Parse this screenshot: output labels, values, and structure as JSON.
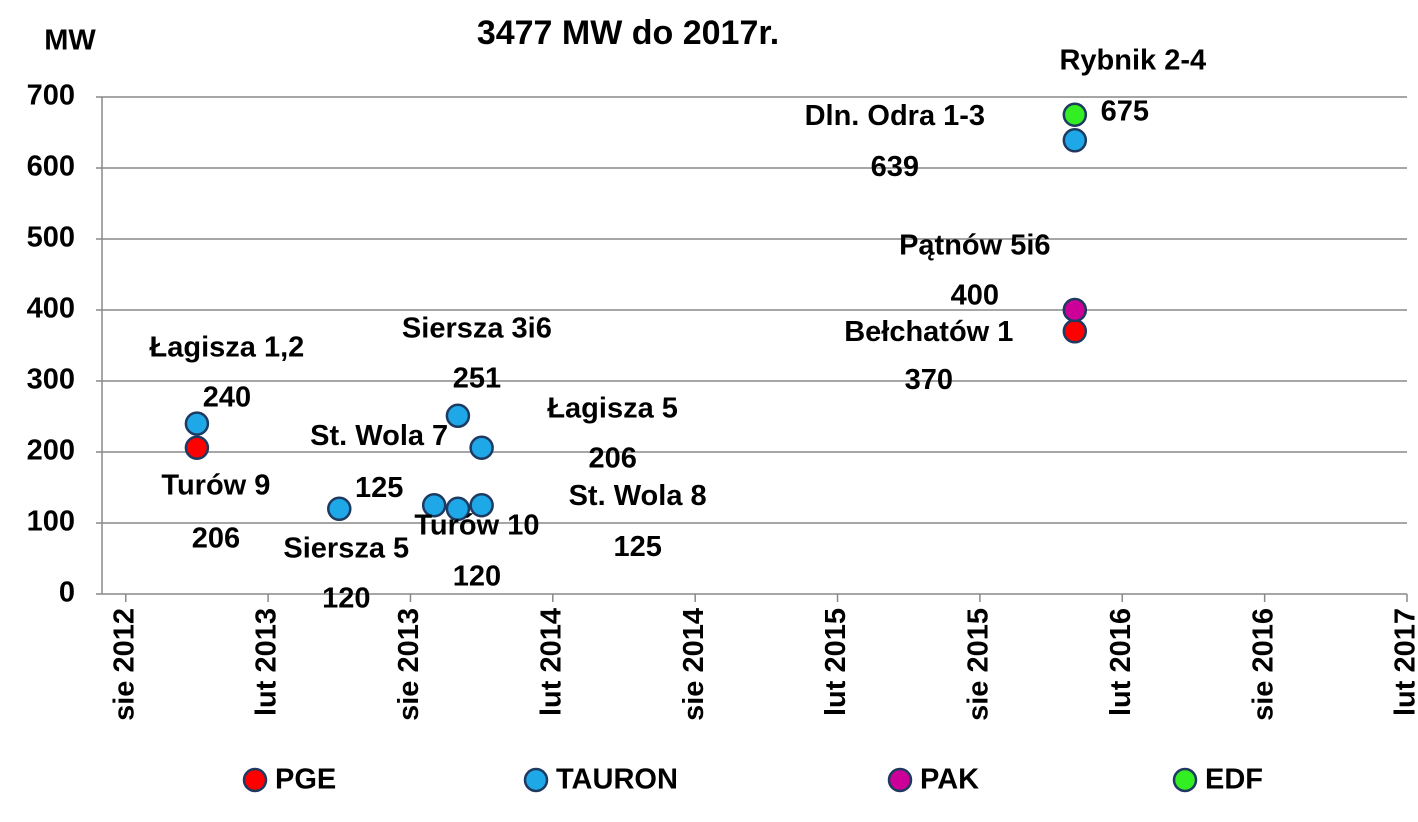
{
  "chart_data": {
    "type": "scatter",
    "title": "3477 MW do 2017r.",
    "y_label": "MW",
    "xlim": [
      "2012-07",
      "2017-02"
    ],
    "xticks": [
      {
        "value": "2012-08",
        "label": "sie 2012"
      },
      {
        "value": "2013-02",
        "label": "lut 2013"
      },
      {
        "value": "2013-08",
        "label": "sie 2013"
      },
      {
        "value": "2014-02",
        "label": "lut 2014"
      },
      {
        "value": "2014-08",
        "label": "sie 2014"
      },
      {
        "value": "2015-02",
        "label": "lut 2015"
      },
      {
        "value": "2015-08",
        "label": "sie 2015"
      },
      {
        "value": "2016-02",
        "label": "lut 2016"
      },
      {
        "value": "2016-08",
        "label": "sie 2016"
      },
      {
        "value": "2017-02",
        "label": "lut 2017"
      }
    ],
    "ylim": [
      0,
      700
    ],
    "yticks": [
      0,
      100,
      200,
      300,
      400,
      500,
      600,
      700
    ],
    "grid": true,
    "legend": "bottom",
    "series": [
      {
        "name": "PGE",
        "color": "#ff0000",
        "x": [
          "2012-11",
          "2015-12"
        ],
        "values": [
          206,
          370
        ],
        "labels": [
          "Turów 9",
          "Bełchatów 1"
        ]
      },
      {
        "name": "TAURON",
        "color": "#1fa8e8",
        "x": [
          "2012-11",
          "2013-05",
          "2013-09",
          "2013-10",
          "2013-11",
          "2013-10",
          "2013-11",
          "2015-12"
        ],
        "values": [
          240,
          120,
          125,
          120,
          125,
          251,
          206,
          639
        ],
        "labels": [
          "Łagisza 1,2",
          "Siersza 5",
          "St. Wola 7",
          "Turów 10",
          "St. Wola 8",
          "Siersza 3i6",
          "Łagisza 5",
          "Dln. Odra 1-3"
        ]
      },
      {
        "name": "PAK",
        "color": "#cc0099",
        "x": [
          "2015-12"
        ],
        "values": [
          400
        ],
        "labels": [
          "Pątnów 5i6"
        ]
      },
      {
        "name": "EDF",
        "color": "#33ee22",
        "x": [
          "2015-12"
        ],
        "values": [
          675
        ],
        "labels": [
          "Rybnik 2-4"
        ]
      }
    ]
  }
}
